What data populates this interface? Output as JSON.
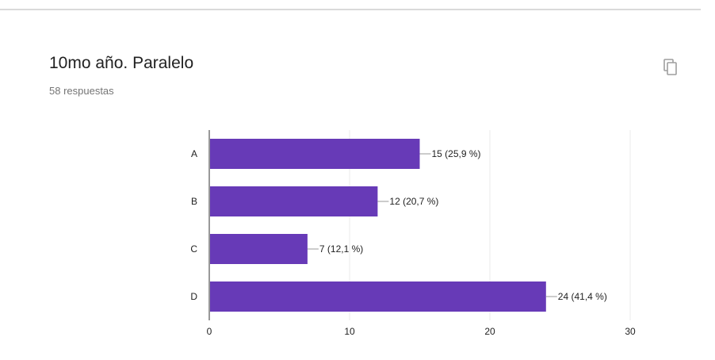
{
  "question": {
    "title": "10mo año. Paralelo",
    "responses": "58 respuestas"
  },
  "toolbar": {
    "copy_icon": "copy-icon"
  },
  "colors": {
    "bar": "#673ab7",
    "axis": "#333333",
    "grid": "#ebebeb",
    "label": "#222222"
  },
  "chart_data": {
    "type": "bar",
    "orientation": "horizontal",
    "categories": [
      "A",
      "B",
      "C",
      "D"
    ],
    "values": [
      15,
      12,
      7,
      24
    ],
    "data_labels": [
      "15 (25,9 %)",
      "12 (20,7 %)",
      "7 (12,1 %)",
      "24 (41,4 %)"
    ],
    "xlim": [
      0,
      30
    ],
    "x_ticks": [
      "0",
      "10",
      "20",
      "30"
    ],
    "grid": true,
    "title": "10mo año. Paralelo",
    "xlabel": "",
    "ylabel": ""
  }
}
